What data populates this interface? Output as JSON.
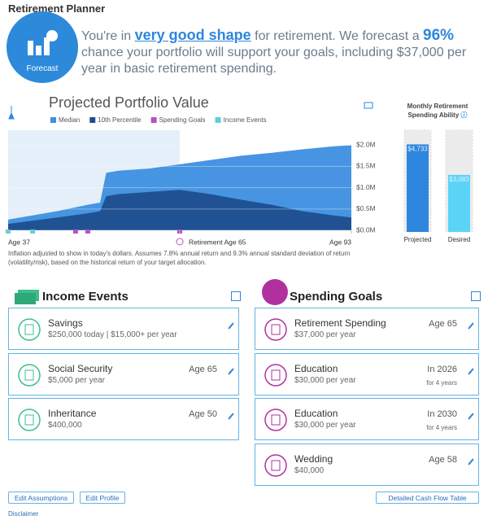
{
  "header": {
    "title": "Retirement Planner"
  },
  "forecast": {
    "badge": "Forecast",
    "text_1": "You're in",
    "highlight": "very good shape",
    "text_2": "for retirement. We forecast a",
    "percent": "96%",
    "text_3": "chance your portfolio will support your goals, including $37,000 per year in basic retirement spending."
  },
  "chart_data": [
    {
      "type": "area",
      "title": "Projected Portfolio Value",
      "x": [
        37,
        45,
        50,
        52,
        53,
        55,
        60,
        65,
        70,
        75,
        80,
        85,
        90,
        93
      ],
      "series": [
        {
          "name": "Median",
          "color": "#3d8fe0",
          "values": [
            0.25,
            0.45,
            0.6,
            0.65,
            1.35,
            1.4,
            1.45,
            1.55,
            1.65,
            1.75,
            1.82,
            1.9,
            1.97,
            2.0
          ]
        },
        {
          "name": "10th Percentile",
          "color": "#1f4e8e",
          "values": [
            0.15,
            0.3,
            0.4,
            0.45,
            0.8,
            0.85,
            0.9,
            0.95,
            0.85,
            0.72,
            0.6,
            0.45,
            0.35,
            0.3
          ]
        }
      ],
      "markers": [
        {
          "name": "Spending Goals",
          "color": "#b552c4",
          "x": [
            48,
            50,
            65
          ]
        },
        {
          "name": "Income Events",
          "color": "#5fd0d6",
          "x": [
            37,
            41
          ]
        }
      ],
      "xlim": [
        37,
        93
      ],
      "xticks": [
        {
          "value": 37,
          "label": "Age 37"
        },
        {
          "value": 65,
          "label": "Retirement Age 65"
        },
        {
          "value": 93,
          "label": "Age 93"
        }
      ],
      "ylim": [
        0,
        2.35
      ],
      "yticks": [
        {
          "value": 0,
          "label": "$0.0M"
        },
        {
          "value": 0.5,
          "label": "$0.5M"
        },
        {
          "value": 1,
          "label": "$1.0M"
        },
        {
          "value": 1.5,
          "label": "$1.5M"
        },
        {
          "value": 2,
          "label": "$2.0M"
        }
      ],
      "grid": true,
      "note": "Inflation adjusted to show in today's dollars. Assumes 7.8% annual return and 9.3% annual standard deviation of return (volatility/risk), based on the historical return of your target allocation."
    },
    {
      "type": "bar",
      "title": "Monthly Retirement Spending Ability",
      "categories": [
        "Projected",
        "Desired"
      ],
      "values": [
        4733,
        3083
      ],
      "value_labels": [
        "$4,733",
        "$3,083"
      ],
      "colors": [
        "#2e86de",
        "#5bd3f6"
      ],
      "ylim": [
        0,
        5500
      ]
    }
  ],
  "income_events": {
    "title": "Income Events",
    "items": [
      {
        "name": "Savings",
        "detail": "$250,000 today | $15,000+ per year"
      },
      {
        "name": "Social Security",
        "detail": "$5,000 per year",
        "when": "Age 65"
      },
      {
        "name": "Inheritance",
        "detail": "$400,000",
        "when": "Age 50"
      }
    ]
  },
  "spending_goals": {
    "title": "Spending Goals",
    "items": [
      {
        "name": "Retirement Spending",
        "detail": "$37,000 per year",
        "when": "Age 65"
      },
      {
        "name": "Education",
        "detail": "$30,000 per year",
        "when": "In 2026",
        "duration": "for 4 years"
      },
      {
        "name": "Education",
        "detail": "$30,000 per year",
        "when": "In 2030",
        "duration": "for 4 years"
      },
      {
        "name": "Wedding",
        "detail": "$40,000",
        "when": "Age 58"
      }
    ]
  },
  "buttons": [
    "Edit Assumptions",
    "Edit Profile",
    "Detailed Cash Flow Table"
  ],
  "disclaimer": "Disclaimer"
}
